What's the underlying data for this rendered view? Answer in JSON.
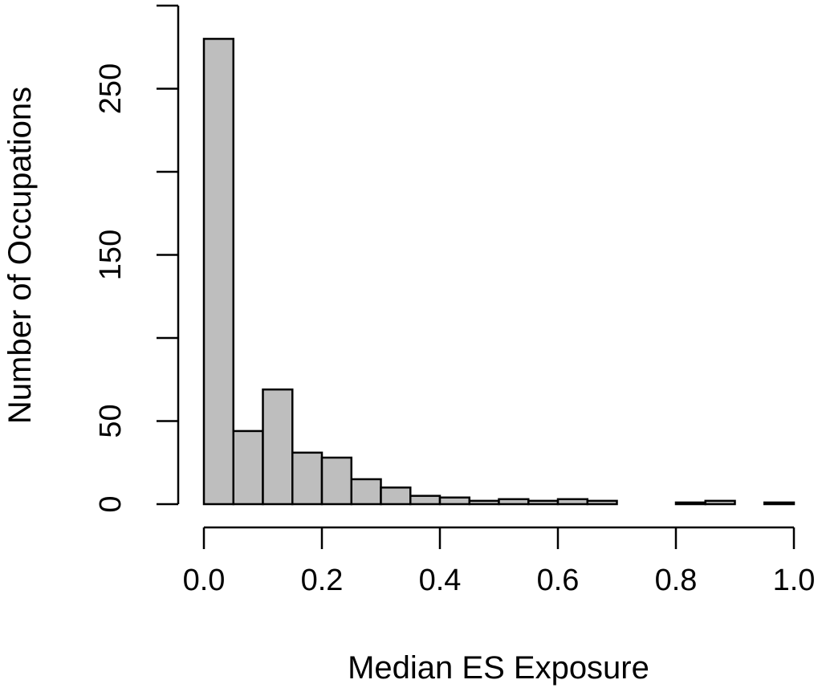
{
  "chart_data": {
    "type": "bar",
    "title": "",
    "xlabel": "Median ES Exposure",
    "ylabel": "Number of Occupations",
    "bin_width": 0.05,
    "bins": [
      {
        "x0": 0.0,
        "x1": 0.05,
        "count": 280
      },
      {
        "x0": 0.05,
        "x1": 0.1,
        "count": 44
      },
      {
        "x0": 0.1,
        "x1": 0.15,
        "count": 69
      },
      {
        "x0": 0.15,
        "x1": 0.2,
        "count": 31
      },
      {
        "x0": 0.2,
        "x1": 0.25,
        "count": 28
      },
      {
        "x0": 0.25,
        "x1": 0.3,
        "count": 15
      },
      {
        "x0": 0.3,
        "x1": 0.35,
        "count": 10
      },
      {
        "x0": 0.35,
        "x1": 0.4,
        "count": 5
      },
      {
        "x0": 0.4,
        "x1": 0.45,
        "count": 4
      },
      {
        "x0": 0.45,
        "x1": 0.5,
        "count": 2
      },
      {
        "x0": 0.5,
        "x1": 0.55,
        "count": 3
      },
      {
        "x0": 0.55,
        "x1": 0.6,
        "count": 2
      },
      {
        "x0": 0.6,
        "x1": 0.65,
        "count": 3
      },
      {
        "x0": 0.65,
        "x1": 0.7,
        "count": 2
      },
      {
        "x0": 0.7,
        "x1": 0.75,
        "count": 0
      },
      {
        "x0": 0.75,
        "x1": 0.8,
        "count": 0
      },
      {
        "x0": 0.8,
        "x1": 0.85,
        "count": 1
      },
      {
        "x0": 0.85,
        "x1": 0.9,
        "count": 2
      },
      {
        "x0": 0.9,
        "x1": 0.95,
        "count": 0
      },
      {
        "x0": 0.95,
        "x1": 1.0,
        "count": 1
      }
    ],
    "xlim": [
      0,
      1
    ],
    "ylim": [
      0,
      300
    ],
    "x_ticks": [
      0.0,
      0.2,
      0.4,
      0.6,
      0.8,
      1.0
    ],
    "x_tick_labels": [
      "0.0",
      "0.2",
      "0.4",
      "0.6",
      "0.8",
      "1.0"
    ],
    "y_ticks": [
      0,
      50,
      100,
      150,
      200,
      250,
      300
    ],
    "y_tick_labels": [
      "0",
      "50",
      "",
      "150",
      "",
      "250",
      ""
    ],
    "grid": false,
    "legend": "none",
    "colors": {
      "bar_fill": "#bebebe",
      "bar_stroke": "#000000",
      "axis": "#000000"
    }
  }
}
